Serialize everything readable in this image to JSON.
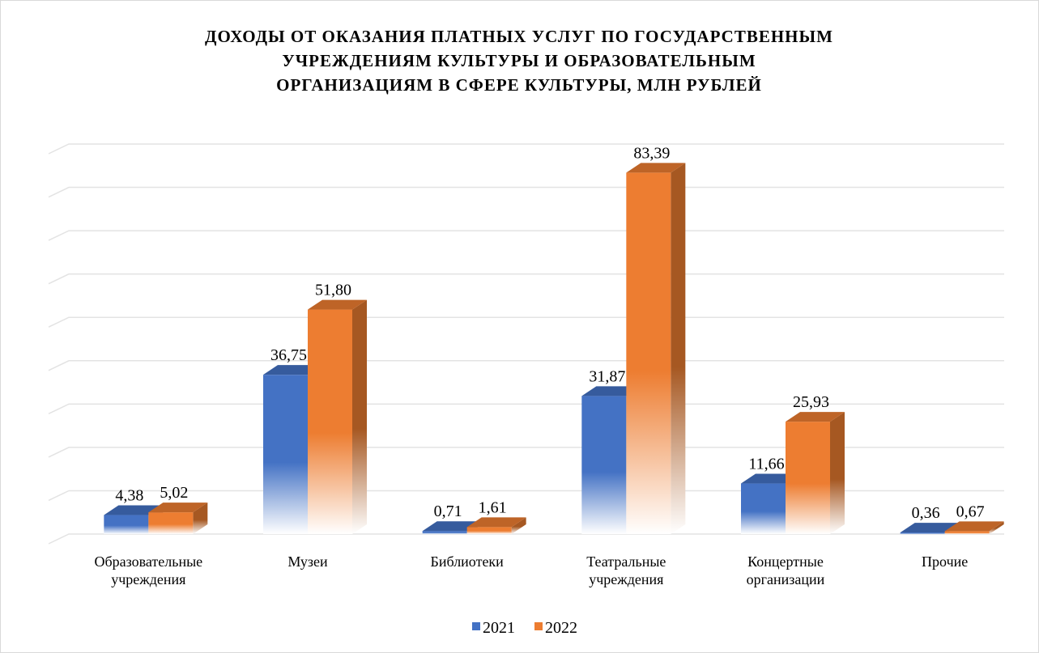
{
  "chart_data": {
    "type": "bar3d",
    "title": "ДОХОДЫ ОТ ОКАЗАНИЯ ПЛАТНЫХ УСЛУГ ПО ГОСУДАРСТВЕННЫМ\nУЧРЕЖДЕНИЯМ КУЛЬТУРЫ И ОБРАЗОВАТЕЛЬНЫМ\nОРГАНИЗАЦИЯМ В СФЕРЕ КУЛЬТУРЫ, МЛН РУБЛЕЙ",
    "categories": [
      "Образовательные\nучреждения",
      "Музеи",
      "Библиотеки",
      "Театральные\nучреждения",
      "Концертные\nорганизации",
      "Прочие"
    ],
    "series": [
      {
        "name": "2021",
        "color": "#4472c4",
        "values": [
          4.38,
          36.75,
          0.71,
          31.87,
          11.66,
          0.36
        ],
        "value_labels": [
          "4,38",
          "36,75",
          "0,71",
          "31,87",
          "11,66",
          "0,36"
        ]
      },
      {
        "name": "2022",
        "color": "#ed7d31",
        "values": [
          5.02,
          51.8,
          1.61,
          83.39,
          25.93,
          0.67
        ],
        "value_labels": [
          "5,02",
          "51,80",
          "1,61",
          "83,39",
          "25,93",
          "0,67"
        ]
      }
    ],
    "ylim": [
      0,
      90
    ],
    "yticks": [
      0,
      10,
      20,
      30,
      40,
      50,
      60,
      70,
      80,
      90
    ],
    "grid": true,
    "legend": "bottom"
  }
}
